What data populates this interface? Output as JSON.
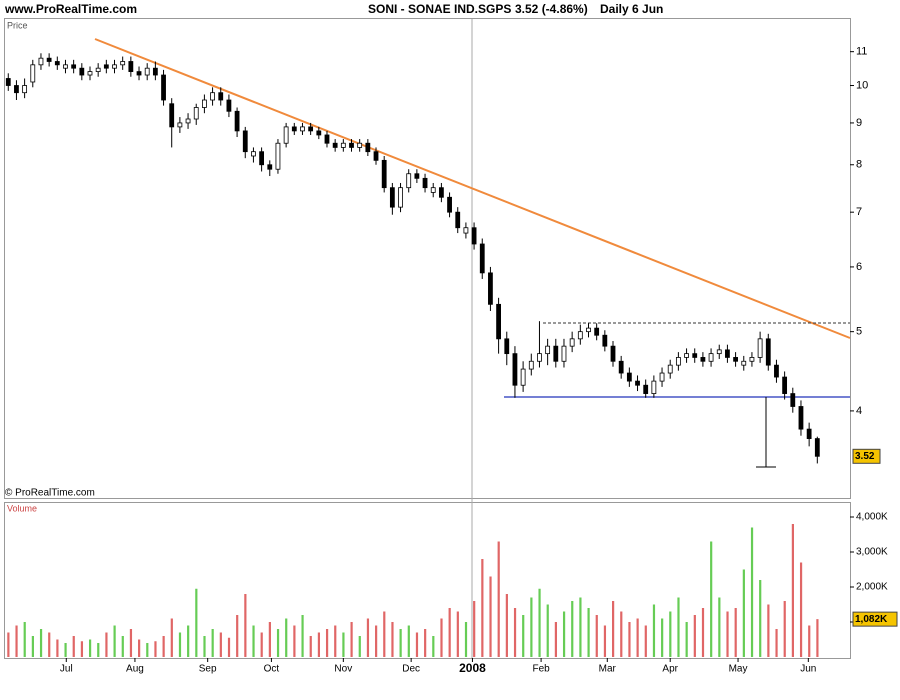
{
  "header": {
    "site": "www.ProRealTime.com",
    "copyright": "© ProRealTime.com"
  },
  "chart_data": [
    {
      "type": "candlestick",
      "title": "SONI - SONAE IND.SGPS",
      "subtitle": "3.52 (-4.86%)",
      "period": "Daily  6 Jun",
      "y_label": "Price",
      "log_scale": true,
      "up_color": "#ffffff",
      "down_color": "#000000",
      "badge_color": "#f5c400",
      "xlim": [
        -0.4,
        103
      ],
      "ylim": [
        3.13,
        12.06
      ],
      "yticks": [
        4,
        5,
        6,
        7,
        8,
        9,
        10,
        11
      ],
      "open": [
        10.2,
        10.0,
        9.8,
        10.1,
        10.6,
        10.8,
        10.7,
        10.5,
        10.6,
        10.5,
        10.3,
        10.4,
        10.6,
        10.5,
        10.6,
        10.7,
        10.4,
        10.3,
        10.5,
        10.3,
        9.5,
        8.9,
        9.0,
        9.1,
        9.4,
        9.6,
        9.8,
        9.6,
        9.3,
        8.8,
        8.2,
        8.3,
        8.0,
        7.9,
        8.5,
        8.9,
        8.8,
        8.9,
        8.8,
        8.7,
        8.5,
        8.4,
        8.5,
        8.4,
        8.5,
        8.3,
        8.1,
        7.5,
        7.1,
        7.5,
        7.8,
        7.7,
        7.4,
        7.5,
        7.3,
        7.0,
        6.6,
        6.7,
        6.4,
        5.9,
        5.4,
        4.9,
        4.7,
        4.3,
        4.5,
        4.6,
        4.7,
        4.8,
        4.6,
        4.8,
        4.9,
        5.0,
        5.05,
        4.95,
        4.8,
        4.6,
        4.45,
        4.35,
        4.3,
        4.2,
        4.35,
        4.45,
        4.55,
        4.65,
        4.7,
        4.65,
        4.6,
        4.7,
        4.75,
        4.65,
        4.55,
        4.6,
        4.65,
        4.9,
        4.55,
        4.4,
        4.2,
        4.05,
        3.8,
        3.7
      ],
      "high": [
        10.35,
        10.15,
        10.2,
        10.75,
        10.95,
        10.95,
        10.85,
        10.75,
        10.75,
        10.65,
        10.55,
        10.65,
        10.75,
        10.75,
        10.85,
        10.85,
        10.55,
        10.65,
        10.7,
        10.45,
        9.65,
        9.15,
        9.25,
        9.5,
        9.75,
        9.95,
        9.95,
        9.75,
        9.4,
        8.9,
        8.4,
        8.4,
        8.1,
        8.6,
        9.0,
        9.0,
        9.0,
        9.0,
        8.9,
        8.8,
        8.6,
        8.6,
        8.6,
        8.6,
        8.6,
        8.4,
        8.2,
        7.6,
        7.6,
        7.9,
        7.9,
        7.8,
        7.6,
        7.6,
        7.4,
        7.1,
        6.8,
        6.8,
        6.5,
        6.0,
        5.5,
        5.0,
        4.8,
        4.6,
        4.7,
        5.15,
        4.9,
        4.9,
        4.9,
        5.0,
        5.1,
        5.12,
        5.12,
        5.02,
        4.87,
        4.67,
        4.52,
        4.42,
        4.37,
        4.42,
        4.52,
        4.62,
        4.72,
        4.77,
        4.77,
        4.72,
        4.77,
        4.82,
        4.82,
        4.72,
        4.67,
        4.72,
        5.0,
        4.97,
        4.62,
        4.47,
        4.27,
        4.12,
        3.87,
        3.72
      ],
      "low": [
        9.85,
        9.6,
        9.65,
        9.95,
        10.45,
        10.55,
        10.45,
        10.35,
        10.35,
        10.15,
        10.15,
        10.25,
        10.35,
        10.35,
        10.45,
        10.25,
        10.15,
        10.15,
        10.15,
        9.45,
        8.4,
        8.75,
        8.85,
        8.95,
        9.25,
        9.45,
        9.45,
        9.15,
        8.65,
        8.15,
        8.05,
        7.85,
        7.75,
        7.8,
        8.4,
        8.7,
        8.7,
        8.7,
        8.6,
        8.4,
        8.3,
        8.3,
        8.3,
        8.3,
        8.2,
        8.0,
        7.4,
        6.95,
        7.0,
        7.4,
        7.6,
        7.4,
        7.3,
        7.2,
        6.9,
        6.6,
        6.5,
        6.3,
        5.8,
        5.3,
        4.7,
        4.55,
        4.15,
        4.22,
        4.42,
        4.52,
        4.55,
        4.52,
        4.52,
        4.72,
        4.82,
        4.92,
        4.88,
        4.73,
        4.53,
        4.38,
        4.28,
        4.23,
        4.15,
        4.15,
        4.28,
        4.38,
        4.48,
        4.58,
        4.58,
        4.53,
        4.53,
        4.63,
        4.58,
        4.53,
        4.48,
        4.53,
        4.58,
        4.48,
        4.33,
        4.13,
        3.98,
        3.73,
        3.62,
        3.45
      ],
      "close": [
        10.0,
        9.8,
        10.0,
        10.6,
        10.8,
        10.7,
        10.6,
        10.6,
        10.5,
        10.3,
        10.4,
        10.5,
        10.5,
        10.6,
        10.7,
        10.4,
        10.3,
        10.5,
        10.3,
        9.6,
        8.9,
        9.0,
        9.1,
        9.4,
        9.6,
        9.8,
        9.6,
        9.3,
        8.8,
        8.3,
        8.3,
        8.0,
        7.9,
        8.5,
        8.9,
        8.8,
        8.9,
        8.8,
        8.7,
        8.5,
        8.4,
        8.5,
        8.4,
        8.5,
        8.3,
        8.1,
        7.5,
        7.1,
        7.5,
        7.8,
        7.7,
        7.5,
        7.5,
        7.3,
        7.0,
        6.7,
        6.7,
        6.4,
        5.9,
        5.4,
        4.9,
        4.7,
        4.3,
        4.5,
        4.6,
        4.7,
        4.8,
        4.6,
        4.8,
        4.9,
        5.0,
        5.05,
        4.95,
        4.8,
        4.6,
        4.45,
        4.35,
        4.3,
        4.2,
        4.35,
        4.45,
        4.55,
        4.65,
        4.7,
        4.65,
        4.6,
        4.7,
        4.75,
        4.65,
        4.6,
        4.6,
        4.65,
        4.9,
        4.55,
        4.4,
        4.2,
        4.05,
        3.8,
        3.7,
        3.52
      ]
    },
    {
      "type": "bar",
      "y_label": "Volume",
      "up_color": "#66cc55",
      "down_color": "#e06666",
      "badge_color": "#f5c400",
      "xlim": [
        -0.4,
        103
      ],
      "ylim": [
        0,
        4400
      ],
      "yticks": [
        {
          "value": 1000,
          "label": "1,000K"
        },
        {
          "value": 2000,
          "label": "2,000K"
        },
        {
          "value": 3000,
          "label": "3,000K"
        },
        {
          "value": 4000,
          "label": "4,000K"
        }
      ],
      "xticks": [
        {
          "value": 7.1,
          "label": "Jul"
        },
        {
          "value": 15.5,
          "label": "Aug"
        },
        {
          "value": 24.4,
          "label": "Sep"
        },
        {
          "value": 32.2,
          "label": "Oct"
        },
        {
          "value": 41.0,
          "label": "Nov"
        },
        {
          "value": 49.3,
          "label": "Dec"
        },
        {
          "value": 56.8,
          "label": "2008"
        },
        {
          "value": 65.2,
          "label": "Feb"
        },
        {
          "value": 73.3,
          "label": "Mar"
        },
        {
          "value": 81.0,
          "label": "Apr"
        },
        {
          "value": 89.3,
          "label": "May"
        },
        {
          "value": 97.9,
          "label": "Jun"
        }
      ],
      "values": [
        700,
        900,
        1000,
        600,
        800,
        700,
        500,
        400,
        600,
        450,
        500,
        400,
        700,
        900,
        600,
        800,
        500,
        400,
        450,
        600,
        1100,
        700,
        900,
        1950,
        600,
        800,
        700,
        550,
        1200,
        1800,
        900,
        700,
        1000,
        800,
        1100,
        900,
        1200,
        600,
        700,
        800,
        900,
        700,
        1000,
        600,
        1100,
        900,
        1300,
        1000,
        800,
        900,
        700,
        800,
        600,
        1100,
        1400,
        1300,
        1000,
        1600,
        2800,
        2300,
        3300,
        1800,
        1400,
        1200,
        1700,
        1950,
        1500,
        1000,
        1300,
        1600,
        1700,
        1400,
        1200,
        900,
        1600,
        1300,
        1000,
        1100,
        900,
        1500,
        1100,
        1300,
        1700,
        1000,
        1200,
        1400,
        3300,
        1700,
        1300,
        1400,
        2500,
        3700,
        2200,
        1500,
        800,
        1600,
        3800,
        2700,
        900,
        1082
      ],
      "value_labels": [
        null,
        null,
        null,
        null,
        null,
        null,
        null,
        null,
        null,
        null,
        null,
        null,
        null,
        null,
        null,
        null,
        null,
        null,
        null,
        null,
        null,
        null,
        null,
        null,
        null,
        null,
        null,
        null,
        null,
        null,
        null,
        null,
        null,
        null,
        null,
        null,
        null,
        null,
        null,
        null,
        null,
        null,
        null,
        null,
        null,
        null,
        null,
        null,
        null,
        null,
        null,
        null,
        null,
        null,
        null,
        null,
        null,
        null,
        null,
        null,
        null,
        null,
        null,
        null,
        null,
        null,
        null,
        null,
        null,
        null,
        null,
        null,
        null,
        null,
        null,
        null,
        null,
        null,
        null,
        null,
        null,
        null,
        null,
        null,
        null,
        null,
        null,
        null,
        null,
        null,
        null,
        null,
        null,
        null,
        null,
        null,
        null,
        null,
        null,
        "1,082K"
      ]
    }
  ]
}
